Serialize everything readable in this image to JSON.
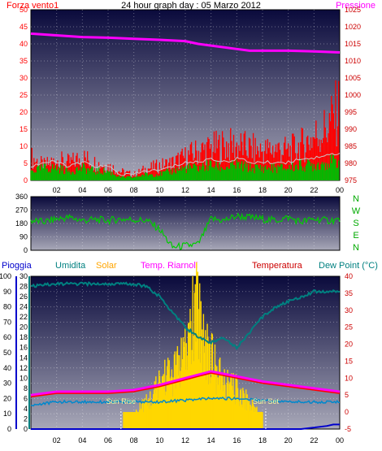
{
  "title": "24 hour graph day : 05 Marzo 2012",
  "colors": {
    "wind": "#ff0000",
    "wind_gust": "#00bb00",
    "pressure": "#ff00ff",
    "direction": "#00cc00",
    "rain": "#0000cc",
    "humidity": "#008080",
    "solar": "#ffd700",
    "riarnoli": "#ff00ff",
    "temperature": "#ff0000",
    "dewpoint": "#0088cc",
    "axis_right": "#cc0000",
    "bg_top": "#0a0a3c",
    "bg_bottom": "#a8a8b8"
  },
  "chart_data": [
    {
      "type": "bar",
      "panel": "wind-pressure",
      "labels": {
        "left": "Forza vento1",
        "right": "Pressione"
      },
      "left_axis": {
        "ticks": [
          "0",
          "5",
          "10",
          "15",
          "20",
          "25",
          "30",
          "35",
          "40",
          "45",
          "50"
        ],
        "ylim": [
          0,
          50
        ]
      },
      "right_axis": {
        "ticks": [
          "975",
          "980",
          "985",
          "990",
          "995",
          "1000",
          "1005",
          "1010",
          "1015",
          "1020",
          "1025"
        ],
        "ylim": [
          975,
          1025
        ]
      },
      "x_ticks": [
        "02",
        "04",
        "06",
        "08",
        "10",
        "12",
        "14",
        "16",
        "18",
        "20",
        "22",
        "00"
      ],
      "x_range_hours": [
        0,
        24
      ],
      "series": [
        {
          "name": "Forza vento1",
          "kind": "bars",
          "points": [
            [
              0,
              8
            ],
            [
              1,
              5
            ],
            [
              2,
              7
            ],
            [
              3,
              6
            ],
            [
              4,
              8
            ],
            [
              5,
              6
            ],
            [
              6,
              5
            ],
            [
              7,
              3
            ],
            [
              8,
              2
            ],
            [
              9,
              4
            ],
            [
              10,
              5
            ],
            [
              11,
              6
            ],
            [
              12,
              8
            ],
            [
              13,
              10
            ],
            [
              14,
              11
            ],
            [
              15,
              12
            ],
            [
              16,
              12
            ],
            [
              17,
              11
            ],
            [
              18,
              10
            ],
            [
              19,
              11
            ],
            [
              20,
              10
            ],
            [
              21,
              12
            ],
            [
              22,
              15
            ],
            [
              23,
              18
            ],
            [
              24,
              25
            ]
          ]
        },
        {
          "name": "gust",
          "kind": "bars",
          "points": [
            [
              0,
              3
            ],
            [
              1,
              4
            ],
            [
              2,
              4
            ],
            [
              3,
              3
            ],
            [
              4,
              4
            ],
            [
              5,
              3
            ],
            [
              6,
              3
            ],
            [
              7,
              1
            ],
            [
              8,
              1
            ],
            [
              9,
              2
            ],
            [
              10,
              2
            ],
            [
              11,
              3
            ],
            [
              12,
              4
            ],
            [
              13,
              4
            ],
            [
              14,
              5
            ],
            [
              15,
              4
            ],
            [
              16,
              5
            ],
            [
              17,
              4
            ],
            [
              18,
              4
            ],
            [
              19,
              4
            ],
            [
              20,
              4
            ],
            [
              21,
              5
            ],
            [
              22,
              5
            ],
            [
              23,
              6
            ],
            [
              24,
              6
            ]
          ]
        },
        {
          "name": "Pressione",
          "kind": "line",
          "axis": "right",
          "points": [
            [
              0,
              1018
            ],
            [
              2,
              1017.5
            ],
            [
              4,
              1017
            ],
            [
              6,
              1016.8
            ],
            [
              8,
              1016.5
            ],
            [
              10,
              1016.2
            ],
            [
              12,
              1015.8
            ],
            [
              13,
              1015
            ],
            [
              14,
              1014.5
            ],
            [
              16,
              1013.5
            ],
            [
              17,
              1013
            ],
            [
              18,
              1013
            ],
            [
              20,
              1013
            ],
            [
              22,
              1012.8
            ],
            [
              24,
              1012.5
            ]
          ]
        }
      ]
    },
    {
      "type": "line",
      "panel": "wind-direction",
      "left_axis": {
        "ticks": [
          "0",
          "90",
          "180",
          "270",
          "360"
        ],
        "ylim": [
          0,
          360
        ]
      },
      "compass": [
        "N",
        "W",
        "S",
        "E",
        "N"
      ],
      "x_ticks": [
        "02",
        "04",
        "06",
        "08",
        "10",
        "12",
        "14",
        "16",
        "18",
        "20",
        "22",
        "00"
      ],
      "x_range_hours": [
        0,
        24
      ],
      "series": [
        {
          "name": "direction",
          "points": [
            [
              0,
              200
            ],
            [
              1,
              190
            ],
            [
              2,
              210
            ],
            [
              3,
              220
            ],
            [
              4,
              200
            ],
            [
              5,
              205
            ],
            [
              6,
              200
            ],
            [
              7,
              210
            ],
            [
              8,
              205
            ],
            [
              9,
              200
            ],
            [
              10,
              140
            ],
            [
              11,
              20
            ],
            [
              12,
              30
            ],
            [
              13,
              40
            ],
            [
              14,
              210
            ],
            [
              15,
              200
            ],
            [
              16,
              230
            ],
            [
              17,
              220
            ],
            [
              18,
              210
            ],
            [
              19,
              200
            ],
            [
              20,
              220
            ],
            [
              21,
              190
            ],
            [
              22,
              210
            ],
            [
              23,
              200
            ],
            [
              24,
              205
            ]
          ]
        }
      ]
    },
    {
      "type": "line",
      "panel": "rain-humidity-solar-temp",
      "labels": [
        "Pioggia",
        "Umidita",
        "Solar",
        "Temp. Riarnoli",
        "Temperatura",
        "Dew Point (°C)"
      ],
      "annotations": [
        "Sun Rise",
        "Sun Set"
      ],
      "sun_rise_hour": 7.0,
      "sun_set_hour": 18.25,
      "rain_axis": {
        "ticks": [
          "0",
          "10",
          "20",
          "30",
          "40",
          "50",
          "60",
          "70",
          "80",
          "90",
          "100"
        ],
        "ylim": [
          0,
          100
        ]
      },
      "humidity_axis": {
        "ticks": [
          "0",
          "2",
          "4",
          "6",
          "8",
          "10",
          "12",
          "14",
          "16",
          "18",
          "20",
          "22",
          "24",
          "26",
          "28",
          "30"
        ],
        "ylim": [
          0,
          30
        ]
      },
      "right_axis": {
        "ticks": [
          "-5",
          "0",
          "5",
          "10",
          "15",
          "20",
          "25",
          "30",
          "35",
          "40"
        ],
        "ylim": [
          -5,
          40
        ]
      },
      "x_ticks": [
        "02",
        "04",
        "06",
        "08",
        "10",
        "12",
        "14",
        "16",
        "18",
        "20",
        "22",
        "00"
      ],
      "x_range_hours": [
        0,
        24
      ],
      "series": [
        {
          "name": "Umidita",
          "axis": "humidity",
          "points": [
            [
              0,
              28
            ],
            [
              2,
              28.5
            ],
            [
              4,
              28.5
            ],
            [
              6,
              28.5
            ],
            [
              7,
              28.5
            ],
            [
              8,
              28.5
            ],
            [
              9,
              28
            ],
            [
              10,
              26
            ],
            [
              11,
              23
            ],
            [
              12,
              20
            ],
            [
              13,
              18
            ],
            [
              14,
              17
            ],
            [
              15,
              18
            ],
            [
              16,
              16
            ],
            [
              17,
              19
            ],
            [
              18,
              22
            ],
            [
              19,
              24
            ],
            [
              20,
              25
            ],
            [
              21,
              26
            ],
            [
              22,
              27
            ],
            [
              23,
              27
            ],
            [
              24,
              27
            ]
          ]
        },
        {
          "name": "Solar",
          "axis": "right",
          "kind": "area",
          "points": [
            [
              7.2,
              0
            ],
            [
              8,
              2
            ],
            [
              8.5,
              5
            ],
            [
              9,
              6
            ],
            [
              9.5,
              8
            ],
            [
              10,
              12
            ],
            [
              10.5,
              15
            ],
            [
              11,
              14
            ],
            [
              11.5,
              18
            ],
            [
              12,
              20
            ],
            [
              12.5,
              30
            ],
            [
              13,
              35
            ],
            [
              13.5,
              25
            ],
            [
              14,
              20
            ],
            [
              14.5,
              15
            ],
            [
              15,
              12
            ],
            [
              16,
              10
            ],
            [
              17,
              6
            ],
            [
              18,
              2
            ],
            [
              18.5,
              0
            ]
          ]
        },
        {
          "name": "Temp. Riarnoli",
          "axis": "right",
          "points": [
            [
              0,
              5
            ],
            [
              2,
              6
            ],
            [
              4,
              6
            ],
            [
              6,
              6
            ],
            [
              8,
              6.5
            ],
            [
              10,
              8
            ],
            [
              12,
              10
            ],
            [
              13,
              11
            ],
            [
              14,
              12
            ],
            [
              16,
              10.5
            ],
            [
              18,
              9
            ],
            [
              20,
              8
            ],
            [
              22,
              7
            ],
            [
              24,
              6
            ]
          ]
        },
        {
          "name": "Temperatura",
          "axis": "right",
          "points": [
            [
              0,
              4.5
            ],
            [
              2,
              5.5
            ],
            [
              4,
              5.5
            ],
            [
              6,
              5.5
            ],
            [
              8,
              6
            ],
            [
              10,
              7.5
            ],
            [
              12,
              9.5
            ],
            [
              13,
              10.5
            ],
            [
              14,
              11.5
            ],
            [
              16,
              10
            ],
            [
              18,
              8.5
            ],
            [
              20,
              7.5
            ],
            [
              22,
              6.5
            ],
            [
              24,
              5.5
            ]
          ]
        },
        {
          "name": "Dew Point (°C)",
          "axis": "right",
          "points": [
            [
              0,
              2
            ],
            [
              2,
              3
            ],
            [
              4,
              3
            ],
            [
              6,
              3
            ],
            [
              8,
              3
            ],
            [
              10,
              3
            ],
            [
              12,
              3.5
            ],
            [
              14,
              4
            ],
            [
              16,
              4
            ],
            [
              18,
              3.5
            ],
            [
              20,
              3
            ],
            [
              22,
              3
            ],
            [
              24,
              3
            ]
          ]
        },
        {
          "name": "Pioggia",
          "axis": "rain",
          "points": [
            [
              0,
              0
            ],
            [
              18,
              0
            ],
            [
              19,
              0
            ],
            [
              20,
              0
            ],
            [
              21,
              0
            ],
            [
              22,
              1
            ],
            [
              23,
              2
            ],
            [
              23.5,
              3
            ],
            [
              24,
              3
            ]
          ]
        }
      ]
    }
  ]
}
